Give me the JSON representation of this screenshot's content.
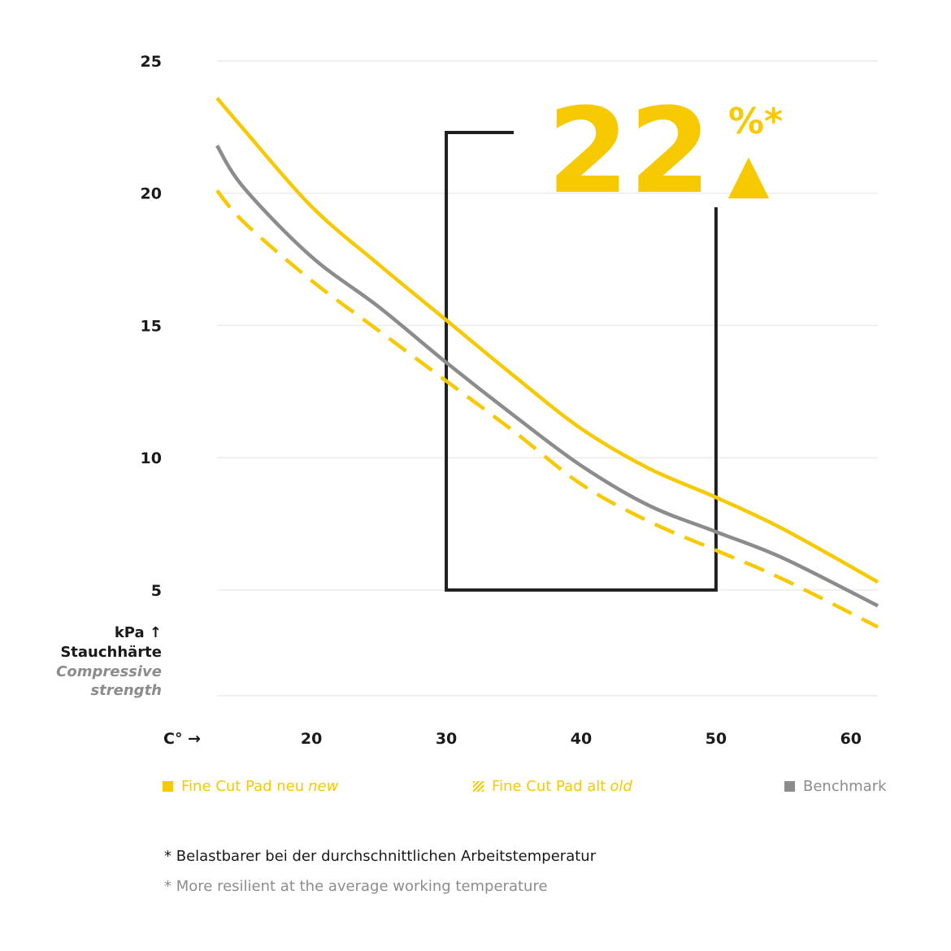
{
  "chart_data": {
    "type": "line",
    "ylim": [
      1,
      25
    ],
    "xlim": [
      13,
      62
    ],
    "y_ticks": [
      "25",
      "20",
      "15",
      "10",
      "5"
    ],
    "x_ticks": [
      "20",
      "30",
      "40",
      "50",
      "60"
    ],
    "y_axis": {
      "unit": "kPa ↑",
      "label_de": "Stauchhärte",
      "label_en_1": "Compressive",
      "label_en_2": "strength"
    },
    "x_axis": {
      "unit": "C° →"
    },
    "series": [
      {
        "name": "Fine Cut Pad neu",
        "name_en": "new",
        "color": "#f7c900",
        "style": "solid",
        "x": [
          13,
          15,
          20,
          25,
          30,
          35,
          40,
          45,
          50,
          55,
          62
        ],
        "y": [
          23.6,
          22.4,
          19.5,
          17.3,
          15.2,
          13.1,
          11.1,
          9.6,
          8.5,
          7.3,
          5.3
        ]
      },
      {
        "name": "Fine Cut Pad alt",
        "name_en": "old",
        "color": "#f7c900",
        "style": "dashed",
        "x": [
          13,
          15,
          20,
          25,
          30,
          35,
          40,
          45,
          50,
          55,
          62
        ],
        "y": [
          20.1,
          18.9,
          16.7,
          14.8,
          12.9,
          11.0,
          9.0,
          7.6,
          6.5,
          5.4,
          3.6
        ]
      },
      {
        "name": "Benchmark",
        "name_en": "",
        "color": "#8c8c8c",
        "style": "solid",
        "x": [
          13,
          15,
          20,
          25,
          30,
          35,
          40,
          45,
          50,
          55,
          62
        ],
        "y": [
          21.8,
          20.2,
          17.6,
          15.7,
          13.6,
          11.6,
          9.7,
          8.2,
          7.2,
          6.2,
          4.4
        ]
      }
    ],
    "annotation": {
      "value": "22",
      "suffix": "%*",
      "marker": "▲",
      "range_x": [
        30,
        50
      ],
      "color": "#f7c900"
    }
  },
  "legend": {
    "items": [
      {
        "label": "Fine Cut Pad neu",
        "label_en": "new",
        "color": "#f7c900",
        "swatch": "solid"
      },
      {
        "label": "Fine Cut Pad alt",
        "label_en": "old",
        "color": "#f7c900",
        "swatch": "hatched"
      },
      {
        "label": "Benchmark",
        "label_en": "",
        "color": "#8c8c8c",
        "swatch": "solid"
      }
    ]
  },
  "footnotes": {
    "de": "* Belastbarer bei der durchschnittlichen Arbeitstemperatur",
    "en": "* More resilient at the average working temperature"
  }
}
